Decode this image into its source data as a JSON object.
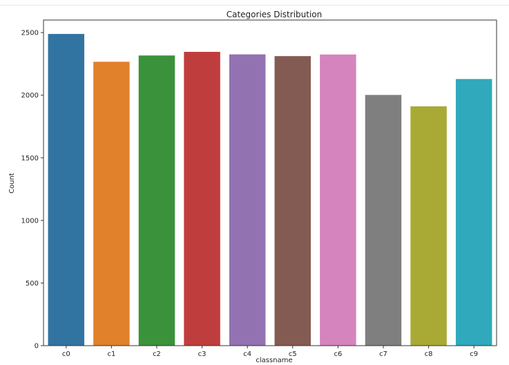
{
  "chart_data": {
    "type": "bar",
    "title": "Categories Distribution",
    "xlabel": "classname",
    "ylabel": "Count",
    "categories": [
      "c0",
      "c1",
      "c2",
      "c3",
      "c4",
      "c5",
      "c6",
      "c7",
      "c8",
      "c9"
    ],
    "values": [
      2489,
      2267,
      2317,
      2346,
      2326,
      2312,
      2325,
      2002,
      1911,
      2129
    ],
    "colors": [
      "#3274a1",
      "#e1812c",
      "#3a923a",
      "#c03d3e",
      "#9372b2",
      "#845b53",
      "#d684bd",
      "#7f7f7f",
      "#a9aa35",
      "#2fa9bb"
    ],
    "ylim": [
      0,
      2600
    ],
    "yticks": [
      0,
      500,
      1000,
      1500,
      2000,
      2500
    ],
    "ytick_labels": [
      "0",
      "500",
      "1000",
      "1500",
      "2000",
      "2500"
    ],
    "grid": false,
    "legend": "none"
  }
}
